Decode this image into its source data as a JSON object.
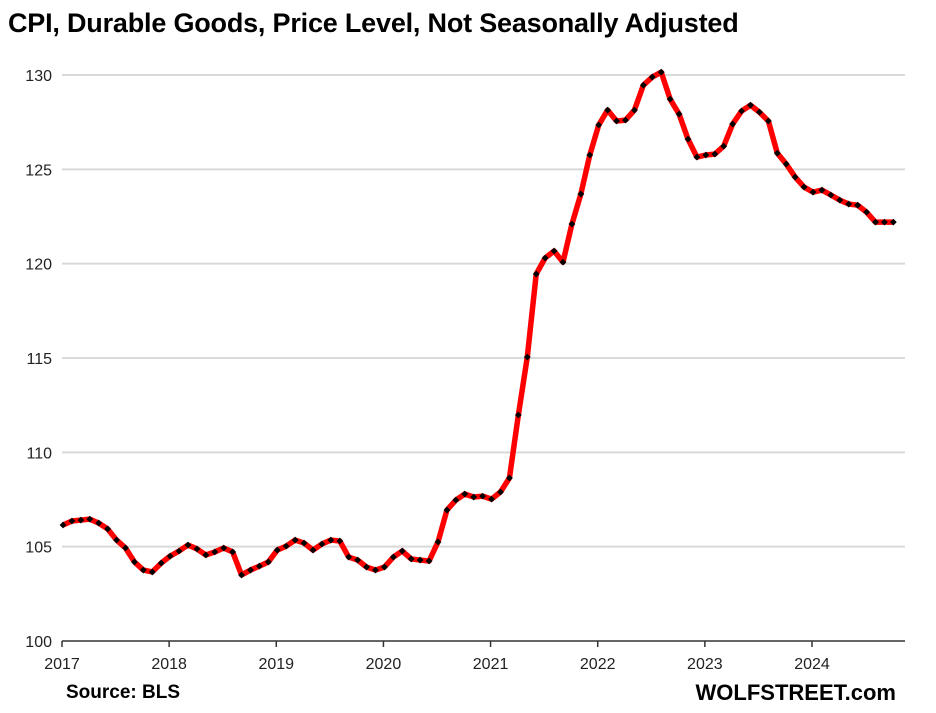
{
  "chart_data": {
    "type": "line",
    "title": "CPI, Durable Goods, Price Level, Not Seasonally Adjusted",
    "source": "Source: BLS",
    "brand": "WOLFSTREET.com",
    "xlabel": "",
    "ylabel": "",
    "ylim": [
      100,
      130
    ],
    "yticks": [
      100,
      105,
      110,
      115,
      120,
      125,
      130
    ],
    "xticks": [
      "2017",
      "2018",
      "2019",
      "2020",
      "2021",
      "2022",
      "2023",
      "2024"
    ],
    "x_start": "2017-01",
    "frequency": "monthly",
    "grid": true,
    "legend": "none",
    "line_color": "#ff0000",
    "marker_color": "#000000",
    "series": [
      {
        "name": "CPI Durable Goods",
        "values": [
          106.15,
          106.36,
          106.41,
          106.46,
          106.25,
          105.94,
          105.35,
          104.93,
          104.19,
          103.76,
          103.66,
          104.13,
          104.5,
          104.77,
          105.09,
          104.88,
          104.56,
          104.72,
          104.93,
          104.72,
          103.5,
          103.76,
          103.97,
          104.19,
          104.82,
          105.03,
          105.35,
          105.19,
          104.82,
          105.14,
          105.35,
          105.3,
          104.45,
          104.29,
          103.92,
          103.76,
          103.92,
          104.45,
          104.77,
          104.35,
          104.29,
          104.24,
          105.25,
          106.94,
          107.47,
          107.79,
          107.63,
          107.68,
          107.52,
          107.9,
          108.64,
          111.98,
          115.05,
          119.45,
          120.3,
          120.67,
          120.08,
          122.1,
          123.69,
          125.76,
          127.35,
          128.14,
          127.56,
          127.61,
          128.14,
          129.46,
          129.89,
          130.15,
          128.72,
          127.93,
          126.6,
          125.65,
          125.76,
          125.81,
          126.23,
          127.4,
          128.09,
          128.4,
          128.03,
          127.56,
          125.86,
          125.28,
          124.59,
          124.06,
          123.79,
          123.9,
          123.64,
          123.37,
          123.16,
          123.1,
          122.73,
          122.2,
          122.2,
          122.2
        ]
      }
    ]
  }
}
